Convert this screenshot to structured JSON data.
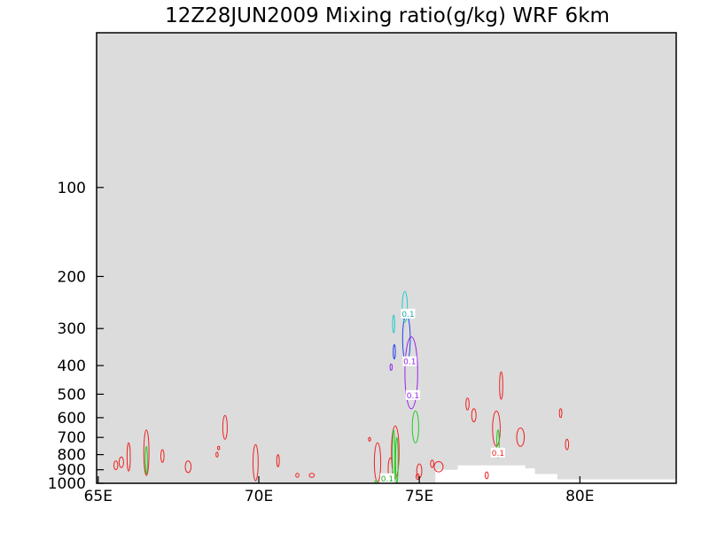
{
  "chart_data": {
    "type": "contour",
    "title": "12Z28JUN2009 Mixing ratio(g/kg)  WRF 6km",
    "x_ticks": [
      {
        "value": 65,
        "label": "65E"
      },
      {
        "value": 70,
        "label": "70E"
      },
      {
        "value": 75,
        "label": "75E"
      },
      {
        "value": 80,
        "label": "80E"
      }
    ],
    "y_ticks": [
      {
        "value": 100,
        "label": "100"
      },
      {
        "value": 200,
        "label": "200"
      },
      {
        "value": 300,
        "label": "300"
      },
      {
        "value": 400,
        "label": "400"
      },
      {
        "value": 500,
        "label": "500"
      },
      {
        "value": 600,
        "label": "600"
      },
      {
        "value": 700,
        "label": "700"
      },
      {
        "value": 800,
        "label": "800"
      },
      {
        "value": 900,
        "label": "900"
      },
      {
        "value": 1000,
        "label": "1000"
      }
    ],
    "xlim": [
      64.95,
      83.0
    ],
    "ylim": [
      1000,
      30
    ],
    "y_scale": "log",
    "plot_background": "#dcdcdc",
    "series": [
      {
        "color": "#ee2222",
        "features": [
          {
            "x": 65.55,
            "y": 870,
            "rx": 0.06,
            "ry": 30
          },
          {
            "x": 65.72,
            "y": 850,
            "rx": 0.07,
            "ry": 35
          },
          {
            "x": 65.95,
            "y": 820,
            "rx": 0.05,
            "ry": 90
          },
          {
            "x": 66.5,
            "y": 800,
            "rx": 0.08,
            "ry": 140
          },
          {
            "x": 67.0,
            "y": 810,
            "rx": 0.05,
            "ry": 40
          },
          {
            "x": 67.8,
            "y": 880,
            "rx": 0.09,
            "ry": 40
          },
          {
            "x": 68.7,
            "y": 800,
            "rx": 0.02,
            "ry": 15
          },
          {
            "x": 68.75,
            "y": 760,
            "rx": 0.02,
            "ry": 10
          },
          {
            "x": 68.95,
            "y": 650,
            "rx": 0.07,
            "ry": 60
          },
          {
            "x": 69.9,
            "y": 860,
            "rx": 0.08,
            "ry": 120
          },
          {
            "x": 70.6,
            "y": 840,
            "rx": 0.04,
            "ry": 40
          },
          {
            "x": 71.2,
            "y": 940,
            "rx": 0.05,
            "ry": 15
          },
          {
            "x": 71.65,
            "y": 940,
            "rx": 0.08,
            "ry": 15
          },
          {
            "x": 73.45,
            "y": 710,
            "rx": 0.02,
            "ry": 10
          },
          {
            "x": 73.7,
            "y": 860,
            "rx": 0.1,
            "ry": 130
          },
          {
            "x": 74.1,
            "y": 900,
            "rx": 0.07,
            "ry": 80
          },
          {
            "x": 74.25,
            "y": 800,
            "rx": 0.12,
            "ry": 160
          },
          {
            "x": 74.95,
            "y": 950,
            "rx": 0.05,
            "ry": 20
          },
          {
            "x": 75.0,
            "y": 910,
            "rx": 0.08,
            "ry": 50
          },
          {
            "x": 75.4,
            "y": 860,
            "rx": 0.05,
            "ry": 25
          },
          {
            "x": 75.6,
            "y": 880,
            "rx": 0.14,
            "ry": 35
          },
          {
            "x": 76.5,
            "y": 540,
            "rx": 0.05,
            "ry": 25
          },
          {
            "x": 76.7,
            "y": 590,
            "rx": 0.07,
            "ry": 30
          },
          {
            "x": 77.1,
            "y": 940,
            "rx": 0.05,
            "ry": 25
          },
          {
            "x": 77.4,
            "y": 660,
            "rx": 0.12,
            "ry": 90
          },
          {
            "x": 77.55,
            "y": 470,
            "rx": 0.05,
            "ry": 50
          },
          {
            "x": 78.15,
            "y": 700,
            "rx": 0.12,
            "ry": 50
          },
          {
            "x": 79.4,
            "y": 580,
            "rx": 0.04,
            "ry": 20
          },
          {
            "x": 79.6,
            "y": 740,
            "rx": 0.05,
            "ry": 30
          }
        ]
      },
      {
        "color": "#22cc22",
        "features": [
          {
            "x": 66.5,
            "y": 840,
            "rx": 0.03,
            "ry": 90
          },
          {
            "x": 73.65,
            "y": 1000,
            "rx": 0.02,
            "ry": 20
          },
          {
            "x": 74.2,
            "y": 830,
            "rx": 0.04,
            "ry": 170
          },
          {
            "x": 74.3,
            "y": 850,
            "rx": 0.04,
            "ry": 150
          },
          {
            "x": 74.88,
            "y": 650,
            "rx": 0.1,
            "ry": 80
          },
          {
            "x": 77.45,
            "y": 740,
            "rx": 0.04,
            "ry": 80
          }
        ]
      },
      {
        "color": "#9922ee",
        "features": [
          {
            "x": 74.12,
            "y": 405,
            "rx": 0.02,
            "ry": 10
          },
          {
            "x": 74.75,
            "y": 440,
            "rx": 0.2,
            "ry": 120
          }
        ]
      },
      {
        "color": "#2244ee",
        "features": [
          {
            "x": 74.22,
            "y": 360,
            "rx": 0.03,
            "ry": 20
          },
          {
            "x": 74.6,
            "y": 330,
            "rx": 0.12,
            "ry": 60
          }
        ]
      },
      {
        "color": "#22cccc",
        "features": [
          {
            "x": 74.2,
            "y": 290,
            "rx": 0.03,
            "ry": 20
          },
          {
            "x": 74.55,
            "y": 255,
            "rx": 0.08,
            "ry": 30
          }
        ]
      }
    ],
    "contour_labels": [
      {
        "text": "0.1",
        "x": 74.65,
        "y": 268,
        "color": "#22aaaa"
      },
      {
        "text": "0.1",
        "x": 74.7,
        "y": 388,
        "color": "#9922ee"
      },
      {
        "text": "0.1",
        "x": 74.8,
        "y": 505,
        "color": "#9922ee"
      },
      {
        "text": "0.1",
        "x": 77.45,
        "y": 790,
        "color": "#ee2222"
      },
      {
        "text": "0.1",
        "x": 74.0,
        "y": 965,
        "color": "#22aa22"
      }
    ],
    "terrain": {
      "color": "#ffffff",
      "x": [
        75.3,
        75.5,
        75.5,
        76.2,
        76.2,
        78.3,
        78.3,
        78.6,
        78.6,
        79.3,
        79.3,
        83.0
      ],
      "y": [
        1000,
        1000,
        900,
        900,
        870,
        870,
        890,
        890,
        930,
        930,
        970,
        970
      ]
    }
  }
}
